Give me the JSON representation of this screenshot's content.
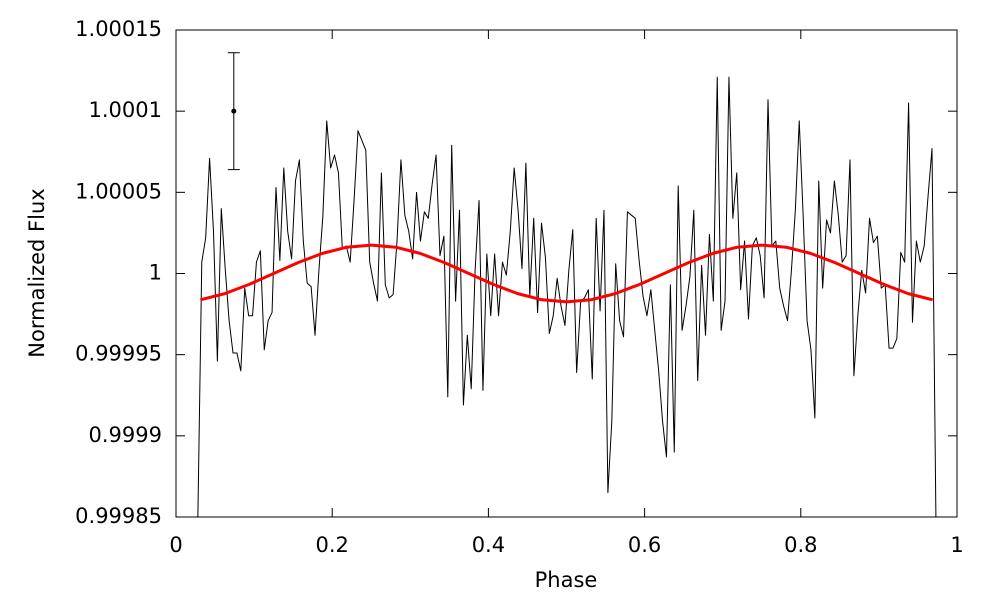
{
  "chart_data": {
    "type": "line",
    "xlabel": "Phase",
    "ylabel": "Normalized Flux",
    "xlim": [
      0,
      1
    ],
    "xticks": [
      0,
      0.2,
      0.4,
      0.6,
      0.8,
      1
    ],
    "ylim": [
      0.99985,
      1.00015
    ],
    "yticks": [
      0.99985,
      0.9999,
      0.99995,
      1,
      1.00005,
      1.0001,
      1.00015
    ],
    "grid": false,
    "series": [
      {
        "color": "#000000",
        "width": 1,
        "x": [
          0.028,
          0.033,
          0.038,
          0.043,
          0.048,
          0.053,
          0.058,
          0.063,
          0.068,
          0.073,
          0.078,
          0.083,
          0.088,
          0.093,
          0.098,
          0.103,
          0.108,
          0.113,
          0.118,
          0.123,
          0.128,
          0.133,
          0.138,
          0.143,
          0.148,
          0.153,
          0.158,
          0.163,
          0.168,
          0.173,
          0.178,
          0.183,
          0.188,
          0.193,
          0.198,
          0.203,
          0.208,
          0.213,
          0.218,
          0.223,
          0.228,
          0.233,
          0.238,
          0.243,
          0.248,
          0.253,
          0.258,
          0.263,
          0.268,
          0.273,
          0.278,
          0.283,
          0.288,
          0.293,
          0.298,
          0.303,
          0.308,
          0.313,
          0.318,
          0.323,
          0.328,
          0.333,
          0.338,
          0.343,
          0.348,
          0.353,
          0.358,
          0.363,
          0.368,
          0.373,
          0.378,
          0.383,
          0.388,
          0.393,
          0.398,
          0.403,
          0.408,
          0.413,
          0.418,
          0.423,
          0.428,
          0.433,
          0.438,
          0.443,
          0.448,
          0.453,
          0.458,
          0.463,
          0.468,
          0.473,
          0.478,
          0.483,
          0.488,
          0.493,
          0.498,
          0.503,
          0.508,
          0.513,
          0.518,
          0.523,
          0.528,
          0.533,
          0.538,
          0.543,
          0.548,
          0.553,
          0.558,
          0.563,
          0.568,
          0.573,
          0.578,
          0.583,
          0.588,
          0.593,
          0.598,
          0.603,
          0.608,
          0.613,
          0.618,
          0.623,
          0.628,
          0.633,
          0.638,
          0.643,
          0.648,
          0.653,
          0.658,
          0.663,
          0.668,
          0.673,
          0.678,
          0.683,
          0.688,
          0.693,
          0.698,
          0.703,
          0.708,
          0.713,
          0.718,
          0.723,
          0.728,
          0.733,
          0.738,
          0.743,
          0.748,
          0.753,
          0.758,
          0.763,
          0.768,
          0.773,
          0.778,
          0.783,
          0.788,
          0.793,
          0.798,
          0.803,
          0.808,
          0.813,
          0.818,
          0.823,
          0.828,
          0.833,
          0.838,
          0.843,
          0.848,
          0.853,
          0.858,
          0.863,
          0.868,
          0.873,
          0.878,
          0.883,
          0.888,
          0.893,
          0.898,
          0.903,
          0.908,
          0.913,
          0.918,
          0.923,
          0.928,
          0.933,
          0.938,
          0.943,
          0.948,
          0.953,
          0.958,
          0.963,
          0.968,
          0.973
        ],
        "values": [
          0.99985,
          1.000007,
          1.000022,
          1.000071,
          1.000026,
          0.999946,
          1.00004,
          1.000003,
          0.999971,
          0.999951,
          0.999951,
          0.99994,
          0.999991,
          0.999974,
          0.999974,
          1.000007,
          1.000014,
          0.999953,
          0.999971,
          0.999976,
          1.000053,
          1.000008,
          1.000065,
          1.000026,
          1.000009,
          1.000057,
          1.00007,
          1.00002,
          0.999994,
          0.999992,
          0.999962,
          1.000002,
          1.000035,
          1.000094,
          1.000065,
          1.000073,
          1.000062,
          1.000015,
          1.000017,
          1.000007,
          1.000045,
          1.000088,
          1.000082,
          1.000076,
          1.000007,
          0.999994,
          0.999983,
          1.000062,
          0.999993,
          0.999985,
          0.999987,
          1.00002,
          1.00007,
          1.000036,
          1.000026,
          1.000009,
          1.00005,
          1.00002,
          1.000038,
          1.000034,
          1.000055,
          1.000073,
          1.000011,
          1.000023,
          0.999924,
          1.000079,
          0.999983,
          1.000039,
          0.999919,
          0.999962,
          0.999929,
          1.000002,
          1.000045,
          0.999928,
          1.000012,
          0.999974,
          1.000012,
          0.999974,
          1.000007,
          0.999999,
          1.000026,
          1.000065,
          1.000039,
          1.000003,
          1.000068,
          0.999986,
          1.000034,
          0.999976,
          1.000031,
          1.00001,
          0.999963,
          0.999974,
          0.999997,
          0.99998,
          0.999968,
          1.000002,
          1.000027,
          0.999939,
          0.999982,
          0.999985,
          0.99999,
          0.999935,
          1.000034,
          0.999977,
          1.000039,
          0.999865,
          0.999909,
          1.000006,
          0.999971,
          0.999961,
          1.000038,
          1.000036,
          1.000034,
          1.000008,
          0.999986,
          0.999974,
          0.99999,
          0.999965,
          0.99994,
          0.999909,
          0.999887,
          0.999993,
          0.99989,
          1.000054,
          0.999965,
          0.99998,
          0.999998,
          1.000039,
          0.999934,
          1.000005,
          0.999962,
          1.000024,
          0.999983,
          1.000121,
          0.999965,
          0.999983,
          1.000121,
          1.000034,
          1.000062,
          0.99999,
          1.00002,
          0.999972,
          1.000017,
          1.000022,
          1.000011,
          0.999985,
          1.000107,
          1.000017,
          1.00002,
          0.999991,
          0.99998,
          0.999971,
          1.000002,
          1.000039,
          1.000094,
          1.000036,
          0.999971,
          0.999953,
          0.999911,
          1.000057,
          0.999991,
          1.000033,
          1.000025,
          1.000057,
          1.000036,
          1.000007,
          1.000011,
          1.00007,
          0.999937,
          0.999974,
          1.000002,
          0.999988,
          1.000034,
          1.000019,
          1.000023,
          0.999991,
          0.999993,
          0.999954,
          0.999954,
          0.99996,
          1.000013,
          1.000007,
          1.000105,
          0.99997,
          1.00002,
          1.000007,
          1.000017,
          1.000048,
          1.000077,
          0.99985
        ]
      },
      {
        "color": "#ff0000",
        "width": 3,
        "x": [
          0.03125,
          0.0625,
          0.09375,
          0.125,
          0.15625,
          0.1875,
          0.21875,
          0.25,
          0.28125,
          0.3125,
          0.34375,
          0.375,
          0.40625,
          0.4375,
          0.46875,
          0.5,
          0.53125,
          0.5625,
          0.59375,
          0.625,
          0.65625,
          0.6875,
          0.71875,
          0.75,
          0.78125,
          0.8125,
          0.84375,
          0.875,
          0.90625,
          0.9375,
          0.96875
        ],
        "values": [
          0.9999838,
          0.9999876,
          0.9999933,
          1,
          1.0000067,
          1.0000124,
          1.0000162,
          1.0000175,
          1.0000162,
          1.0000124,
          1.0000067,
          1,
          0.9999933,
          0.9999876,
          0.9999838,
          0.9999825,
          0.9999838,
          0.9999876,
          0.9999933,
          1,
          1.0000067,
          1.0000124,
          1.0000162,
          1.0000175,
          1.0000162,
          1.0000124,
          1.0000067,
          1,
          0.9999933,
          0.9999876,
          0.9999838
        ]
      }
    ],
    "error_bar": {
      "x": 0.074,
      "y": 1.0001,
      "error": 3.6e-05
    }
  }
}
